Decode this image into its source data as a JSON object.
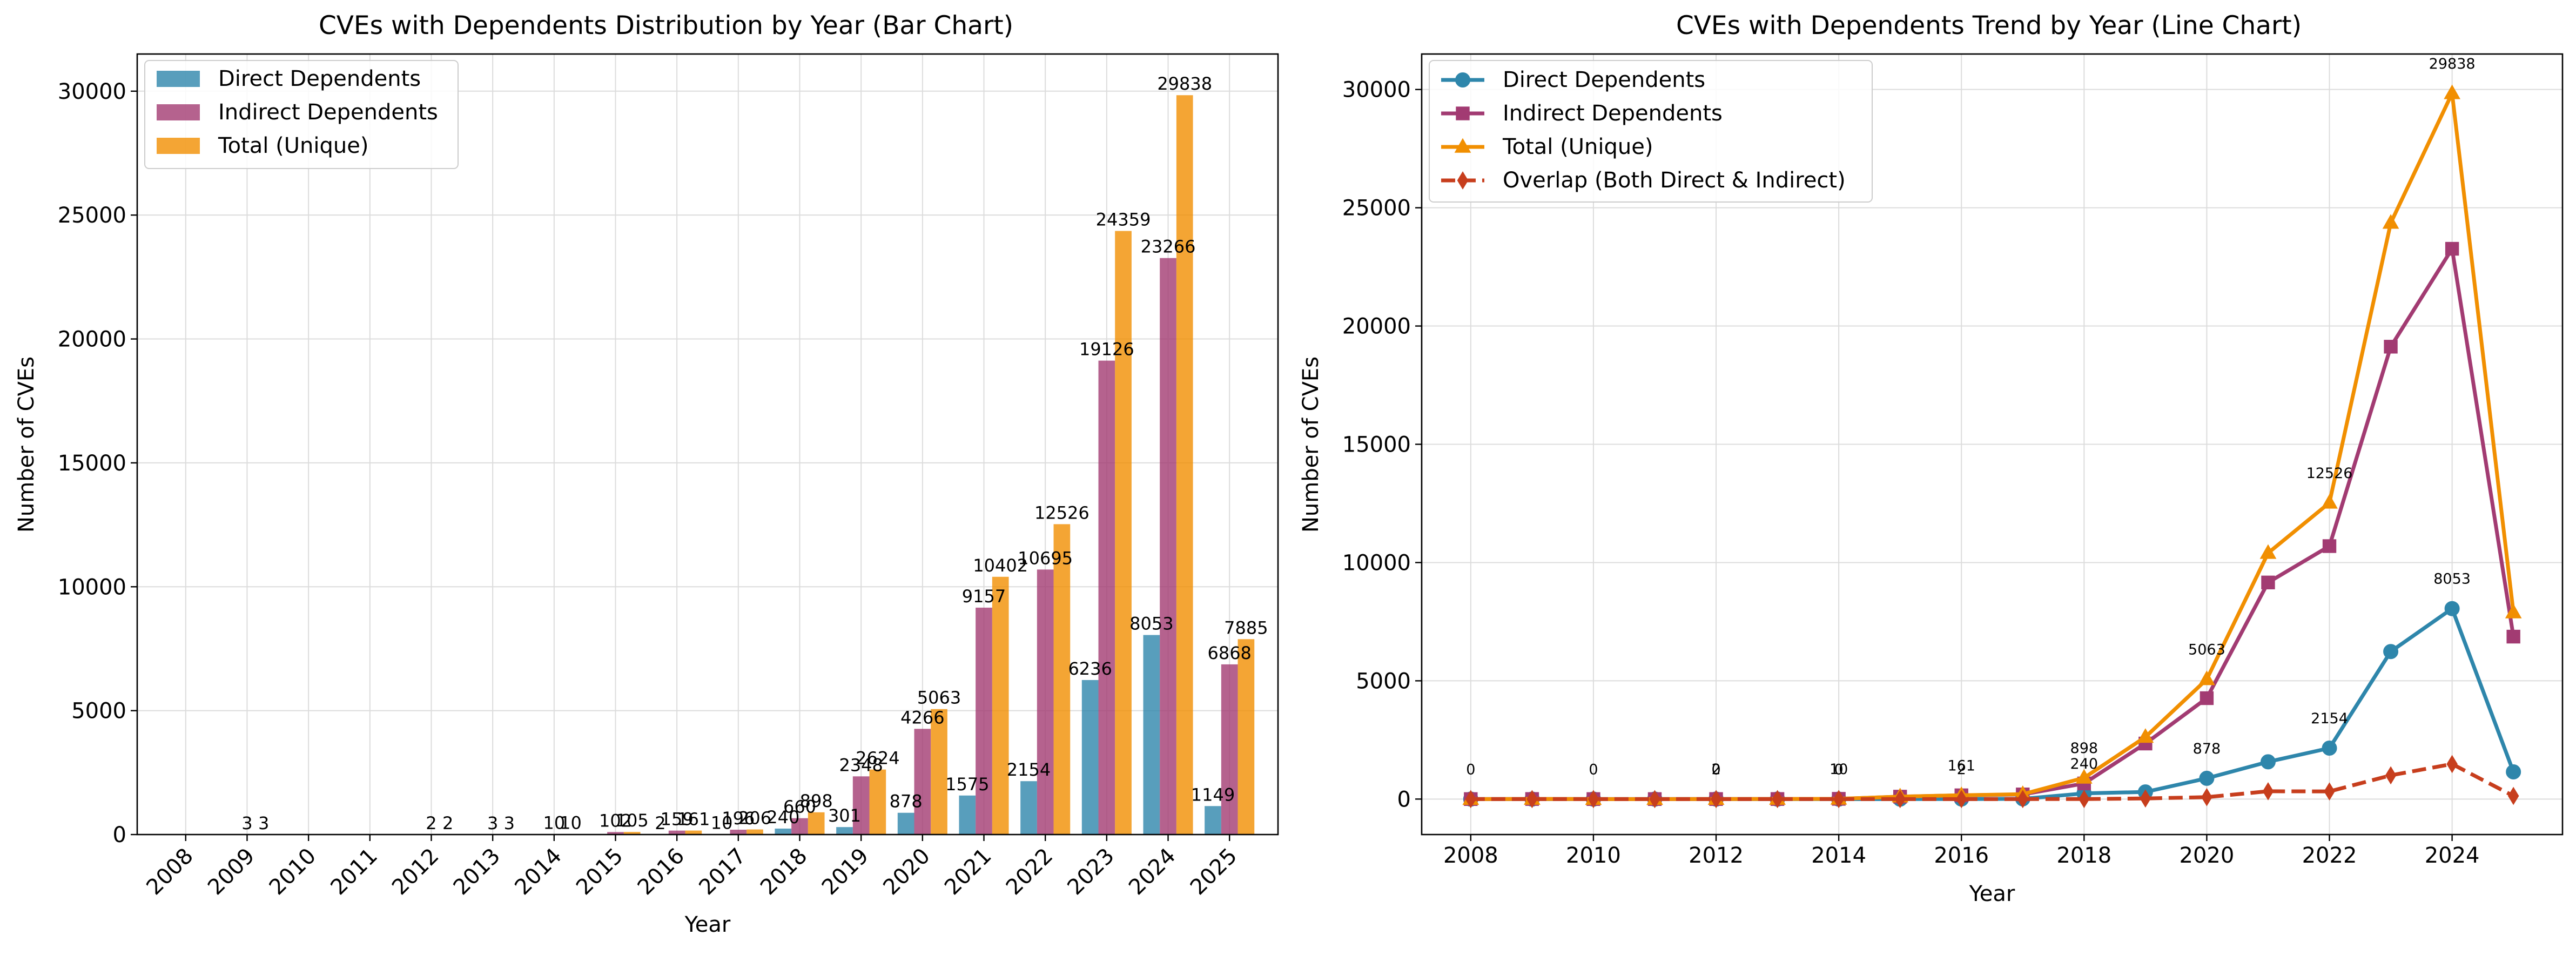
{
  "chart_data": [
    {
      "type": "bar",
      "title": "CVEs with Dependents Distribution by Year (Bar Chart)",
      "xlabel": "Year",
      "ylabel": "Number of CVEs",
      "ylim": [
        0,
        31500
      ],
      "yticks": [
        0,
        5000,
        10000,
        15000,
        20000,
        25000,
        30000
      ],
      "grid": true,
      "legend_position": "top-left",
      "categories": [
        "2008",
        "2009",
        "2010",
        "2011",
        "2012",
        "2013",
        "2014",
        "2015",
        "2016",
        "2017",
        "2018",
        "2019",
        "2020",
        "2021",
        "2022",
        "2023",
        "2024",
        "2025"
      ],
      "series": [
        {
          "name": "Direct Dependents",
          "color": "#2E86AB",
          "values": [
            0,
            0,
            0,
            0,
            0,
            0,
            0,
            0,
            2,
            10,
            240,
            301,
            878,
            1575,
            2154,
            6236,
            8053,
            1149
          ],
          "labels": [
            "",
            "",
            "",
            "",
            "",
            "",
            "",
            "",
            "2",
            "10",
            "240",
            "301",
            "878",
            "1575",
            "2154",
            "6236",
            "8053",
            "1149"
          ]
        },
        {
          "name": "Indirect Dependents",
          "color": "#A23B72",
          "values": [
            0,
            3,
            0,
            0,
            2,
            3,
            10,
            102,
            159,
            196,
            660,
            2348,
            4266,
            9157,
            10695,
            19126,
            23266,
            6868
          ],
          "labels": [
            "",
            "3",
            "",
            "",
            "2",
            "3",
            "10",
            "102",
            "159",
            "196",
            "660",
            "2348",
            "4266",
            "9157",
            "10695",
            "19126",
            "23266",
            "6868"
          ]
        },
        {
          "name": "Total (Unique)",
          "color": "#F18F01",
          "values": [
            0,
            3,
            0,
            0,
            2,
            3,
            10,
            105,
            161,
            206,
            898,
            2624,
            5063,
            10402,
            12526,
            24359,
            29838,
            7885
          ],
          "labels": [
            "",
            "3",
            "",
            "",
            "2",
            "3",
            "10",
            "105",
            "161",
            "206",
            "898",
            "2624",
            "5063",
            "10402",
            "12526",
            "24359",
            "29838",
            "7885"
          ]
        }
      ]
    },
    {
      "type": "line",
      "title": "CVEs with Dependents Trend by Year (Line Chart)",
      "xlabel": "Year",
      "ylabel": "Number of CVEs",
      "xlim": [
        2007.2,
        2025.8
      ],
      "xticks": [
        2008,
        2010,
        2012,
        2014,
        2016,
        2018,
        2020,
        2022,
        2024
      ],
      "ylim": [
        -1500,
        31500
      ],
      "yticks": [
        0,
        5000,
        10000,
        15000,
        20000,
        25000,
        30000
      ],
      "grid": true,
      "legend_position": "top-left",
      "x": [
        2008,
        2009,
        2010,
        2011,
        2012,
        2013,
        2014,
        2015,
        2016,
        2017,
        2018,
        2019,
        2020,
        2021,
        2022,
        2023,
        2024,
        2025
      ],
      "series": [
        {
          "name": "Direct Dependents",
          "color": "#2E86AB",
          "marker": "circle",
          "dash": false,
          "values": [
            0,
            0,
            0,
            0,
            0,
            0,
            0,
            0,
            2,
            10,
            240,
            301,
            878,
            1575,
            2154,
            6236,
            8053,
            1149
          ]
        },
        {
          "name": "Indirect Dependents",
          "color": "#A23B72",
          "marker": "square",
          "dash": false,
          "values": [
            0,
            3,
            0,
            0,
            2,
            3,
            10,
            102,
            159,
            196,
            660,
            2348,
            4266,
            9157,
            10695,
            19126,
            23266,
            6868
          ]
        },
        {
          "name": "Total (Unique)",
          "color": "#F18F01",
          "marker": "triangle",
          "dash": false,
          "values": [
            0,
            3,
            0,
            0,
            2,
            3,
            10,
            105,
            161,
            206,
            898,
            2624,
            5063,
            10402,
            12526,
            24359,
            29838,
            7885
          ]
        },
        {
          "name": "Overlap (Both Direct & Indirect)",
          "color": "#C73E1D",
          "marker": "diamond",
          "dash": true,
          "values": [
            0,
            0,
            0,
            0,
            0,
            0,
            0,
            0,
            0,
            0,
            2,
            25,
            81,
            330,
            323,
            1003,
            1481,
            132
          ]
        }
      ],
      "annotations": [
        {
          "x": 2008,
          "y": 0,
          "text": "0"
        },
        {
          "x": 2010,
          "y": 0,
          "text": "0"
        },
        {
          "x": 2012,
          "y": 2,
          "text": "2"
        },
        {
          "x": 2012,
          "y": 0,
          "text": "0"
        },
        {
          "x": 2014,
          "y": 10,
          "text": "10"
        },
        {
          "x": 2014,
          "y": 0,
          "text": "0"
        },
        {
          "x": 2016,
          "y": 161,
          "text": "161"
        },
        {
          "x": 2016,
          "y": 2,
          "text": "2"
        },
        {
          "x": 2018,
          "y": 898,
          "text": "898"
        },
        {
          "x": 2018,
          "y": 240,
          "text": "240"
        },
        {
          "x": 2020,
          "y": 5063,
          "text": "5063"
        },
        {
          "x": 2020,
          "y": 878,
          "text": "878"
        },
        {
          "x": 2022,
          "y": 12526,
          "text": "12526"
        },
        {
          "x": 2022,
          "y": 2154,
          "text": "2154"
        },
        {
          "x": 2024,
          "y": 29838,
          "text": "29838"
        },
        {
          "x": 2024,
          "y": 8053,
          "text": "8053"
        }
      ]
    }
  ]
}
